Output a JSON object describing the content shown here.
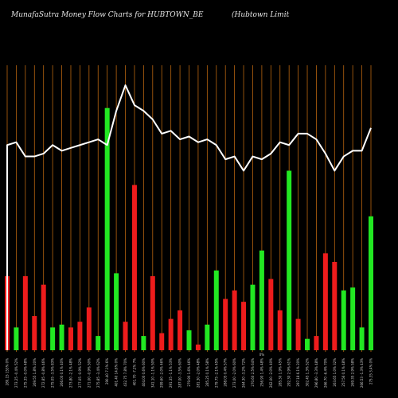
{
  "header": {
    "title": "MunafaSutra  Money Flow  Charts for HUBTOWN_BE",
    "company": "(Hubtown  Limit"
  },
  "colors": {
    "background": "#000000",
    "grid": "#b8650f",
    "up": "#22e822",
    "down": "#ee1c1c",
    "line": "#ffffff"
  },
  "chart_data": {
    "type": "bar",
    "title": "MunafaSutra  Money Flow  Charts for HUBTOWN_BE",
    "x_tick_labels": [
      "280.15 153% 0%",
      "273.25 -0.4% 52%",
      "275.35 -0.0% 48%",
      "269.55 1.8% 20%",
      "272.85 -0.8% 46%",
      "275.05 -3.5% 83%",
      "266.00 0.1% 40%",
      "273.80 -2.1% 48%",
      "277.05 -0.9% 52%",
      "271.00 -0.9% 50%",
      "275.85 -3.4% 62%",
      "290.40 7.1% 6%",
      "401.40 14.6% 0%",
      "432.75 7.8% 70%",
      "401.70 -7.2% 7%",
      "404.00 0.6% 60%",
      "341.10 -1.1% 50%",
      "299.60 -2.0% 46%",
      "291.35 -1.1% 53%",
      "287.00 -3.5% 60%",
      "279.90 1.6% 46%",
      "281.30 -2.0% 48%",
      "285.25 0.1% 58%",
      "279.75 -2.1% 45%",
      "288.05 0.4% 57%",
      "273.00 -2.0% 60%",
      "264.30 -3.2% 72%",
      "270.60 2.5% 64%",
      "256.90 1.4% 48%",
      "262.00 -2.0% 40%",
      "285.30 1.9% 45%",
      "292.30 2.9% 61%",
      "297.18 6.1% 20%",
      "302.45 1.3% 52%",
      "296.80 -3.3% 48%",
      "266.70 -6.4% 70%",
      "263.65 1.0% 32%",
      "257.56 0.1% 48%",
      "269.35 2.9% 58%",
      "266.53 -1.3% 43%",
      "275.35 3.4% 0%"
    ],
    "annotation": "0%",
    "ylim": [
      0,
      100
    ],
    "series": [
      {
        "type": "bar",
        "colors": [
          "red",
          "green",
          "red",
          "red",
          "red",
          "green",
          "green",
          "red",
          "red",
          "red",
          "green",
          "green",
          "green",
          "red",
          "red",
          "green",
          "red",
          "red",
          "red",
          "red",
          "green",
          "red",
          "green",
          "green",
          "red",
          "red",
          "red",
          "green",
          "green",
          "red",
          "red",
          "green",
          "red",
          "green",
          "red",
          "red",
          "red",
          "green",
          "green",
          "green",
          "green"
        ],
        "values": [
          26,
          8,
          26,
          12,
          23,
          8,
          9,
          8,
          10,
          15,
          5,
          85,
          27,
          10,
          58,
          5,
          26,
          6,
          11,
          14,
          7,
          2,
          9,
          28,
          18,
          21,
          17,
          23,
          35,
          25,
          14,
          63,
          11,
          4,
          5,
          34,
          31,
          21,
          22,
          8,
          47
        ]
      },
      {
        "type": "line",
        "values": [
          72,
          73,
          68,
          68,
          69,
          72,
          70,
          71,
          72,
          73,
          74,
          72,
          84,
          93,
          86,
          84,
          81,
          76,
          77,
          74,
          75,
          73,
          74,
          72,
          67,
          68,
          63,
          68,
          67,
          69,
          73,
          72,
          76,
          76,
          74,
          69,
          63,
          68,
          70,
          70,
          78
        ]
      }
    ]
  }
}
